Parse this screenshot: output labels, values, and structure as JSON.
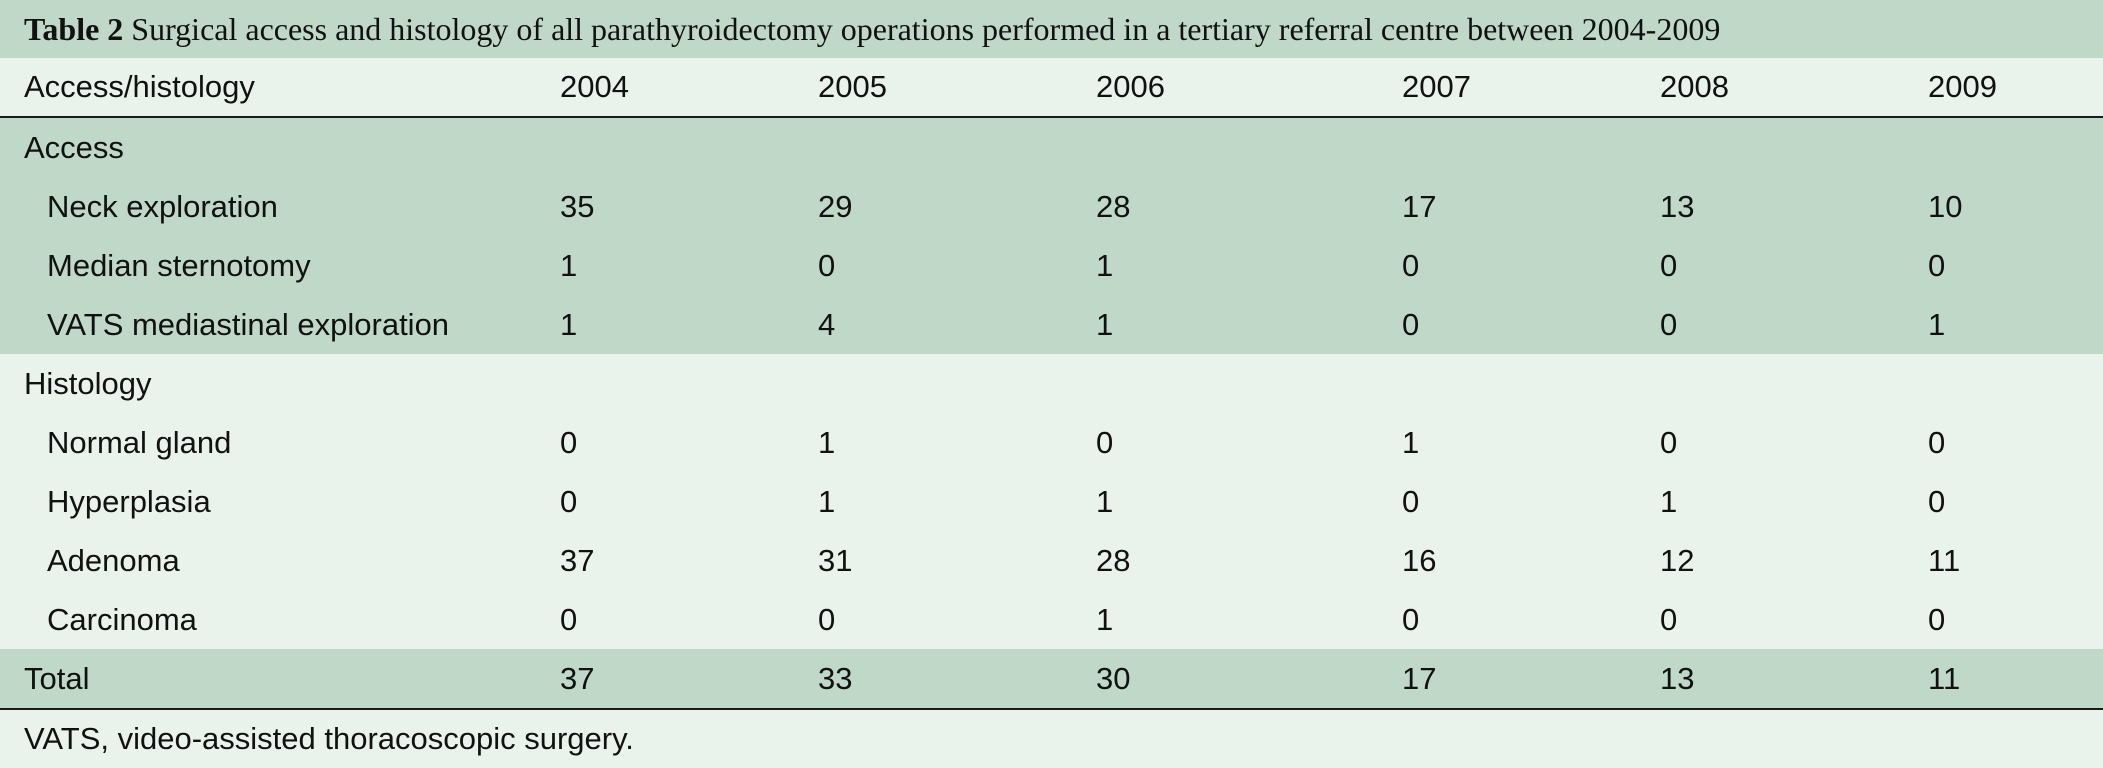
{
  "caption": {
    "label": "Table 2",
    "text": "Surgical access and histology of all parathyroidectomy operations performed in a tertiary referral centre between 2004-2009"
  },
  "header": {
    "col0": "Access/histology",
    "years": [
      "2004",
      "2005",
      "2006",
      "2007",
      "2008",
      "2009"
    ]
  },
  "access": {
    "section_label": "Access",
    "rows": [
      {
        "label": "Neck exploration",
        "values": [
          "35",
          "29",
          "28",
          "17",
          "13",
          "10"
        ]
      },
      {
        "label": "Median sternotomy",
        "values": [
          "1",
          "0",
          "1",
          "0",
          "0",
          "0"
        ]
      },
      {
        "label": "VATS mediastinal exploration",
        "values": [
          "1",
          "4",
          "1",
          "0",
          "0",
          "1"
        ]
      }
    ]
  },
  "histology": {
    "section_label": "Histology",
    "rows": [
      {
        "label": "Normal gland",
        "values": [
          "0",
          "1",
          "0",
          "1",
          "0",
          "0"
        ]
      },
      {
        "label": "Hyperplasia",
        "values": [
          "0",
          "1",
          "1",
          "0",
          "1",
          "0"
        ]
      },
      {
        "label": "Adenoma",
        "values": [
          "37",
          "31",
          "28",
          "16",
          "12",
          "11"
        ]
      },
      {
        "label": "Carcinoma",
        "values": [
          "0",
          "0",
          "1",
          "0",
          "0",
          "0"
        ]
      }
    ]
  },
  "total": {
    "label": "Total",
    "values": [
      "37",
      "33",
      "30",
      "17",
      "13",
      "11"
    ]
  },
  "footnote": "VATS, video-assisted thoracoscopic surgery.",
  "colors": {
    "band": "#bfd8c7",
    "background": "#eaf2ec",
    "rule": "#1a1a1a"
  }
}
